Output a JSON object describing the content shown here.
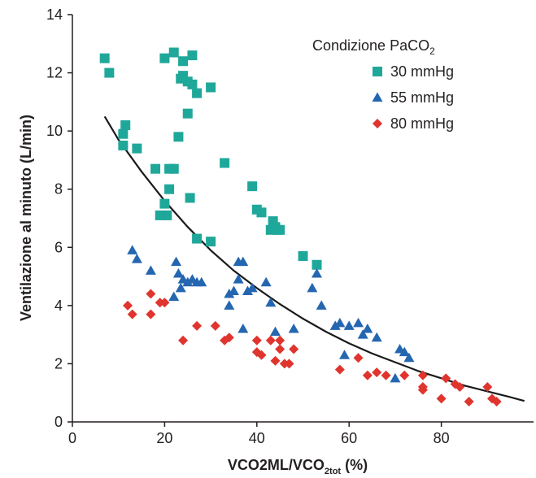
{
  "chart_data": {
    "type": "scatter",
    "xlabel": "VCO2ML/VCO",
    "xlabel_sub": "2tot",
    "xlabel_suffix": " (%)",
    "ylabel": "Ventilazione al minuto (L/min)",
    "xlim": [
      0,
      100
    ],
    "ylim": [
      0,
      14
    ],
    "x_ticks": [
      0,
      20,
      40,
      60,
      80
    ],
    "y_ticks": [
      0,
      2,
      4,
      6,
      8,
      10,
      12,
      14
    ],
    "grid": false,
    "legend_title": "Condizione PaCO",
    "legend_title_sub": "2",
    "legend_position": "top-right",
    "series": [
      {
        "name": "30 mmHg",
        "marker": "square",
        "color": "#1fa89a",
        "points": [
          [
            7,
            12.5
          ],
          [
            8,
            12
          ],
          [
            11,
            9.5
          ],
          [
            11,
            9.9
          ],
          [
            11.5,
            10.2
          ],
          [
            14,
            9.4
          ],
          [
            18,
            8.7
          ],
          [
            19,
            7.1
          ],
          [
            20,
            12.5
          ],
          [
            20,
            7.5
          ],
          [
            20.5,
            7.1
          ],
          [
            21,
            8
          ],
          [
            21,
            8.7
          ],
          [
            22,
            8.7
          ],
          [
            22,
            12.7
          ],
          [
            23,
            9.8
          ],
          [
            23.5,
            11.8
          ],
          [
            24,
            12.4
          ],
          [
            24,
            11.9
          ],
          [
            25,
            10.6
          ],
          [
            25,
            11.7
          ],
          [
            25.5,
            7.7
          ],
          [
            26,
            11.6
          ],
          [
            26,
            12.6
          ],
          [
            27,
            11.3
          ],
          [
            27,
            6.3
          ],
          [
            30,
            11.5
          ],
          [
            30,
            6.2
          ],
          [
            33,
            8.9
          ],
          [
            39,
            8.1
          ],
          [
            40,
            7.3
          ],
          [
            41,
            7.2
          ],
          [
            43,
            6.6
          ],
          [
            43.5,
            6.9
          ],
          [
            44,
            6.7
          ],
          [
            44.5,
            6.6
          ],
          [
            45,
            6.6
          ],
          [
            50,
            5.7
          ],
          [
            53,
            5.4
          ]
        ]
      },
      {
        "name": "55 mmHg",
        "marker": "triangle",
        "color": "#2466b0",
        "points": [
          [
            13,
            5.9
          ],
          [
            14,
            5.6
          ],
          [
            17,
            5.2
          ],
          [
            22,
            4.3
          ],
          [
            22.5,
            5.5
          ],
          [
            23,
            5.1
          ],
          [
            23.5,
            4.6
          ],
          [
            24,
            4.9
          ],
          [
            25,
            4.8
          ],
          [
            26,
            4.9
          ],
          [
            27,
            4.8
          ],
          [
            28,
            4.8
          ],
          [
            34,
            4
          ],
          [
            34,
            4.4
          ],
          [
            35,
            4.5
          ],
          [
            36,
            4.9
          ],
          [
            36,
            5.5
          ],
          [
            37,
            5.5
          ],
          [
            37,
            3.2
          ],
          [
            38,
            4.5
          ],
          [
            39,
            4.6
          ],
          [
            42,
            4.8
          ],
          [
            43,
            4.1
          ],
          [
            44,
            3.1
          ],
          [
            48,
            3.2
          ],
          [
            52,
            4.6
          ],
          [
            53,
            5.1
          ],
          [
            54,
            4
          ],
          [
            57,
            3.3
          ],
          [
            58,
            3.4
          ],
          [
            59,
            2.3
          ],
          [
            60,
            3.3
          ],
          [
            62,
            3.4
          ],
          [
            63,
            3
          ],
          [
            64,
            3.2
          ],
          [
            66,
            2.9
          ],
          [
            70,
            1.5
          ],
          [
            71,
            2.5
          ],
          [
            72,
            2.4
          ],
          [
            73,
            2.2
          ]
        ]
      },
      {
        "name": "80 mmHg",
        "marker": "diamond",
        "color": "#e0342e",
        "points": [
          [
            12,
            4
          ],
          [
            13,
            3.7
          ],
          [
            17,
            4.4
          ],
          [
            17,
            3.7
          ],
          [
            19,
            4.1
          ],
          [
            20,
            4.1
          ],
          [
            24,
            2.8
          ],
          [
            27,
            3.3
          ],
          [
            31,
            3.3
          ],
          [
            33,
            2.8
          ],
          [
            34,
            2.9
          ],
          [
            40,
            2.8
          ],
          [
            40,
            2.4
          ],
          [
            41,
            2.3
          ],
          [
            43,
            2.8
          ],
          [
            44,
            2.1
          ],
          [
            45,
            2.5
          ],
          [
            45,
            2.8
          ],
          [
            46,
            2
          ],
          [
            47,
            2
          ],
          [
            48,
            2.5
          ],
          [
            58,
            1.8
          ],
          [
            62,
            2.2
          ],
          [
            64,
            1.6
          ],
          [
            66,
            1.7
          ],
          [
            68,
            1.6
          ],
          [
            72,
            1.6
          ],
          [
            76,
            1.2
          ],
          [
            76,
            1.1
          ],
          [
            76,
            1.6
          ],
          [
            80,
            0.8
          ],
          [
            81,
            1.5
          ],
          [
            83,
            1.3
          ],
          [
            84,
            1.2
          ],
          [
            86,
            0.7
          ],
          [
            90,
            1.2
          ],
          [
            91,
            0.8
          ],
          [
            92,
            0.7
          ]
        ]
      }
    ],
    "trendline": {
      "type": "fit-curve",
      "color": "#1a1a1a",
      "points": [
        [
          7,
          10.5
        ],
        [
          10,
          9.7
        ],
        [
          15,
          8.6
        ],
        [
          20,
          7.6
        ],
        [
          25,
          6.7
        ],
        [
          30,
          5.9
        ],
        [
          35,
          5.2
        ],
        [
          40,
          4.6
        ],
        [
          45,
          4.05
        ],
        [
          50,
          3.55
        ],
        [
          55,
          3.1
        ],
        [
          60,
          2.7
        ],
        [
          65,
          2.35
        ],
        [
          70,
          2.05
        ],
        [
          75,
          1.75
        ],
        [
          80,
          1.5
        ],
        [
          85,
          1.25
        ],
        [
          90,
          1.05
        ],
        [
          95,
          0.85
        ],
        [
          98,
          0.72
        ]
      ]
    }
  }
}
